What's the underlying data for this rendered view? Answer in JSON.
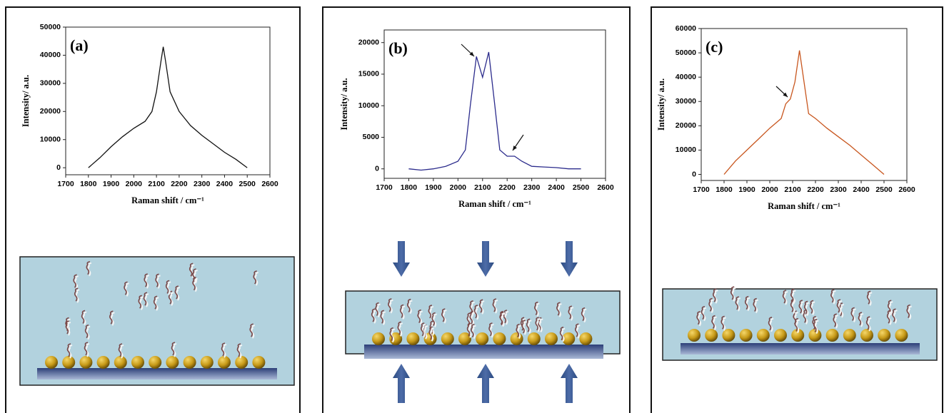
{
  "chart_data": [
    {
      "type": "line",
      "panel_label": "(a)",
      "y_label": "Intensity/ a.u.",
      "x_label": "Raman shift / cm⁻¹",
      "x": [
        1800,
        1850,
        1900,
        1950,
        2000,
        2050,
        2080,
        2100,
        2120,
        2130,
        2140,
        2160,
        2200,
        2250,
        2300,
        2350,
        2400,
        2450,
        2500
      ],
      "series": [
        {
          "color": "#111111",
          "values": [
            0,
            3500,
            7500,
            11000,
            14000,
            16500,
            20000,
            27000,
            38000,
            43000,
            38000,
            27000,
            20000,
            15000,
            11500,
            8500,
            5500,
            3000,
            0
          ]
        }
      ],
      "xlim": [
        1700,
        2600
      ],
      "xticks": [
        1700,
        1800,
        1900,
        2000,
        2100,
        2200,
        2300,
        2400,
        2500,
        2600
      ],
      "ylim": [
        -2500,
        50000
      ],
      "yticks": [
        0,
        10000,
        20000,
        30000,
        40000,
        50000
      ]
    },
    {
      "type": "line",
      "panel_label": "(b)",
      "y_label": "Intensity/ a.u.",
      "x_label": "Raman shift / cm⁻¹",
      "x": [
        1800,
        1850,
        1900,
        1950,
        2000,
        2030,
        2050,
        2075,
        2100,
        2125,
        2150,
        2170,
        2200,
        2230,
        2260,
        2300,
        2350,
        2400,
        2450,
        2500
      ],
      "series": [
        {
          "color": "#2b2b8c",
          "values": [
            0,
            -200,
            0,
            400,
            1200,
            3000,
            10000,
            17800,
            14500,
            18500,
            10000,
            3000,
            2000,
            2000,
            1200,
            400,
            300,
            200,
            0,
            0
          ]
        }
      ],
      "xlim": [
        1700,
        2600
      ],
      "xticks": [
        1700,
        1800,
        1900,
        2000,
        2100,
        2200,
        2300,
        2400,
        2500,
        2600
      ],
      "ylim": [
        -1500,
        22000
      ],
      "yticks": [
        0,
        5000,
        10000,
        15000,
        20000
      ]
    },
    {
      "type": "line",
      "panel_label": "(c)",
      "y_label": "Intensity/ a.u.",
      "x_label": "Raman shift / cm⁻¹",
      "x": [
        1800,
        1850,
        1900,
        1950,
        2000,
        2050,
        2070,
        2090,
        2110,
        2130,
        2150,
        2170,
        2200,
        2250,
        2300,
        2350,
        2400,
        2450,
        2500
      ],
      "series": [
        {
          "color": "#c8561e",
          "values": [
            0,
            5500,
            10000,
            14500,
            19000,
            23000,
            29000,
            31000,
            38000,
            51000,
            38000,
            25000,
            23000,
            19000,
            15500,
            12000,
            8000,
            4000,
            0
          ]
        }
      ],
      "xlim": [
        1700,
        2600
      ],
      "xticks": [
        1700,
        1800,
        1900,
        2000,
        2100,
        2200,
        2300,
        2400,
        2500,
        2600
      ],
      "ylim": [
        -2500,
        60000
      ],
      "yticks": [
        0,
        10000,
        20000,
        30000,
        40000,
        50000,
        60000
      ]
    }
  ]
}
